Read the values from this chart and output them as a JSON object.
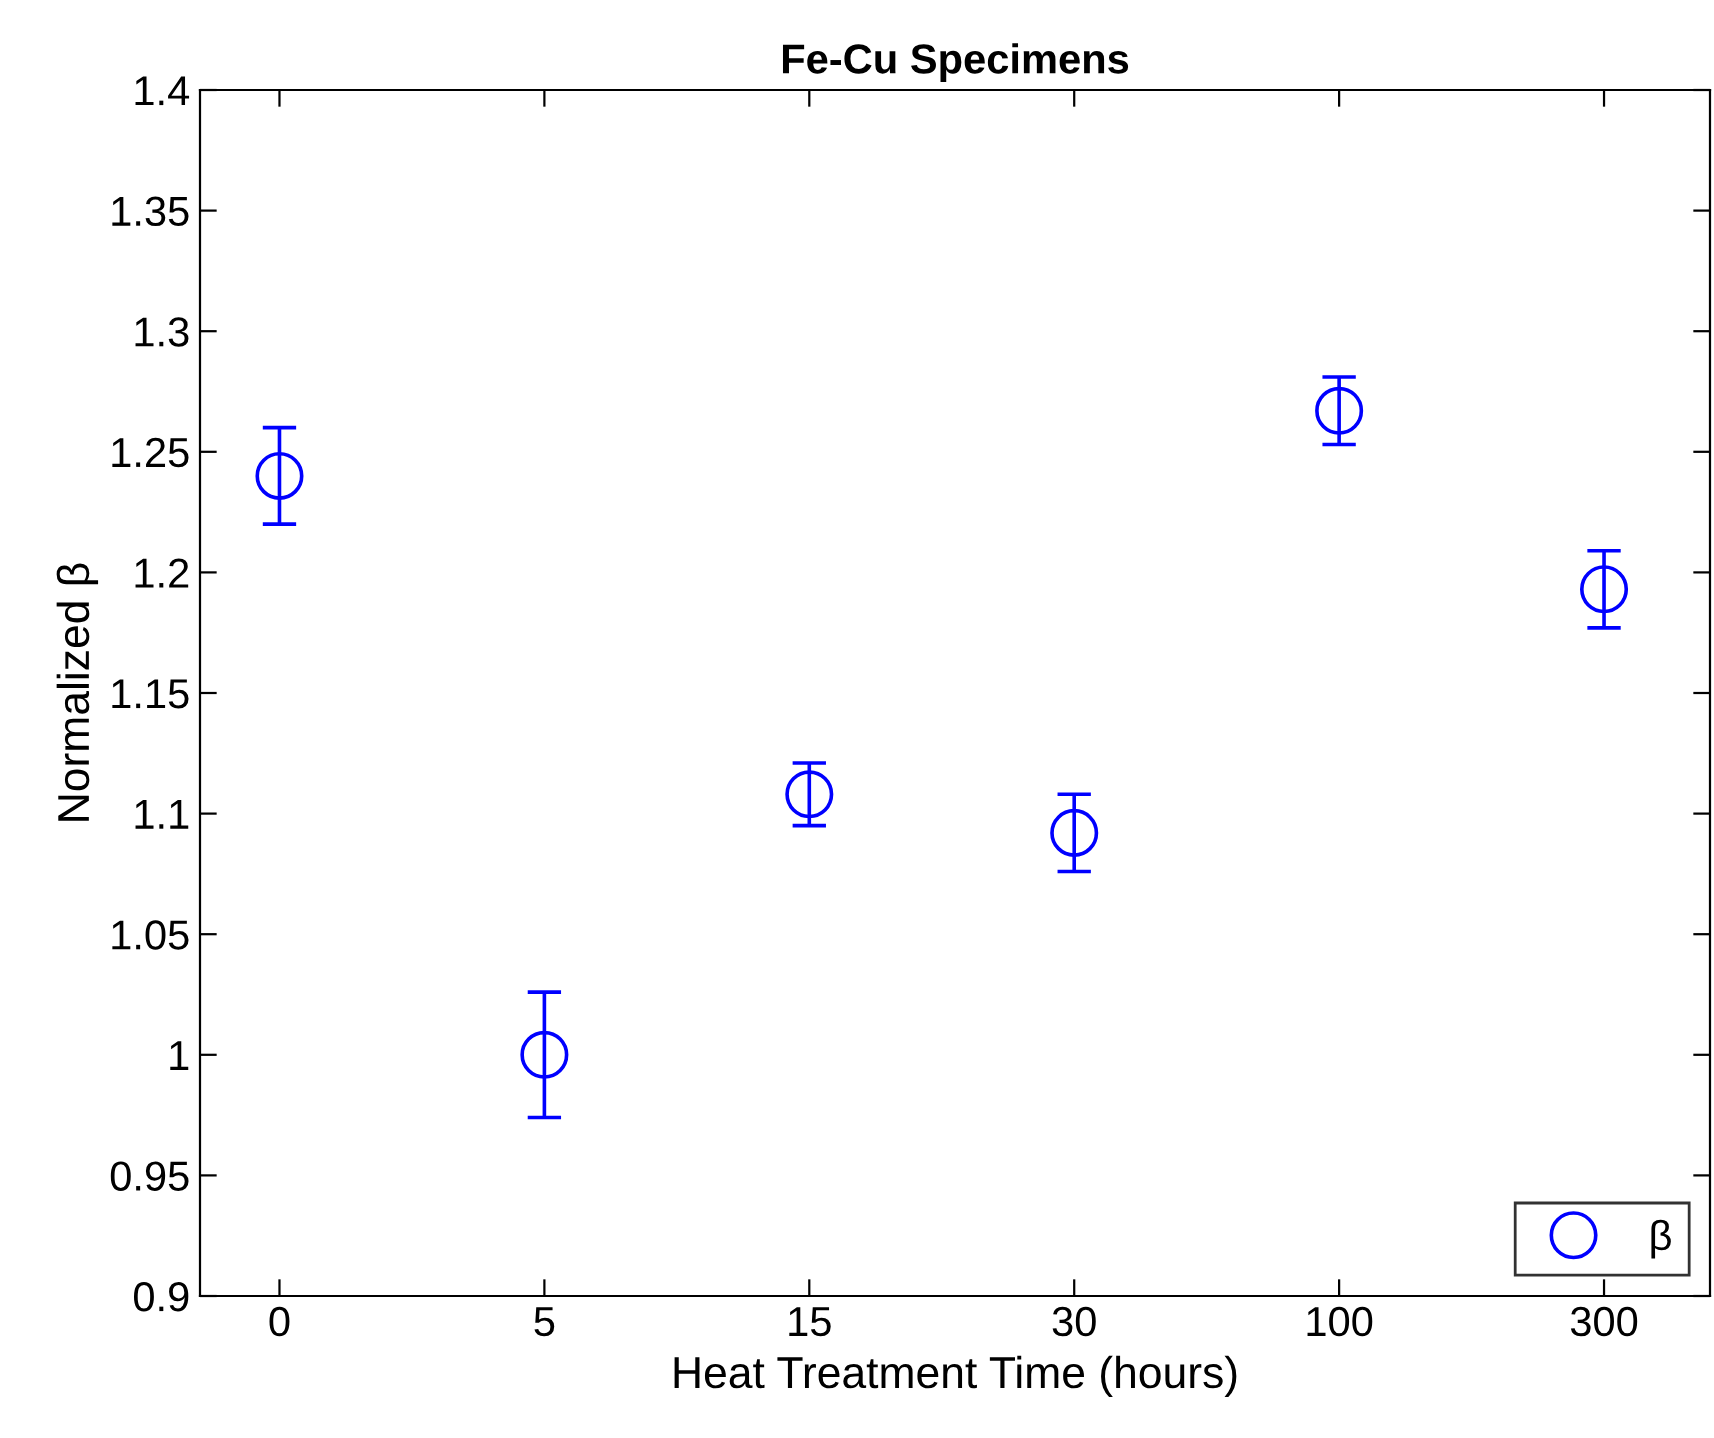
{
  "chart_data": {
    "type": "scatter",
    "title": "Fe-Cu Specimens",
    "xlabel": "Heat Treatment Time (hours)",
    "ylabel": "Normalized β",
    "categories": [
      "0",
      "5",
      "15",
      "30",
      "100",
      "300"
    ],
    "series": [
      {
        "name": "β",
        "color": "#0000ff",
        "values": [
          1.24,
          1.0,
          1.108,
          1.092,
          1.267,
          1.193
        ],
        "errors": [
          0.02,
          0.026,
          0.013,
          0.016,
          0.014,
          0.016
        ]
      }
    ],
    "ylim": [
      0.9,
      1.4
    ],
    "yticks": [
      0.9,
      0.95,
      1,
      1.05,
      1.1,
      1.15,
      1.2,
      1.25,
      1.3,
      1.35,
      1.4
    ],
    "marker": "circle",
    "legend": "bottom right",
    "grid": false
  }
}
